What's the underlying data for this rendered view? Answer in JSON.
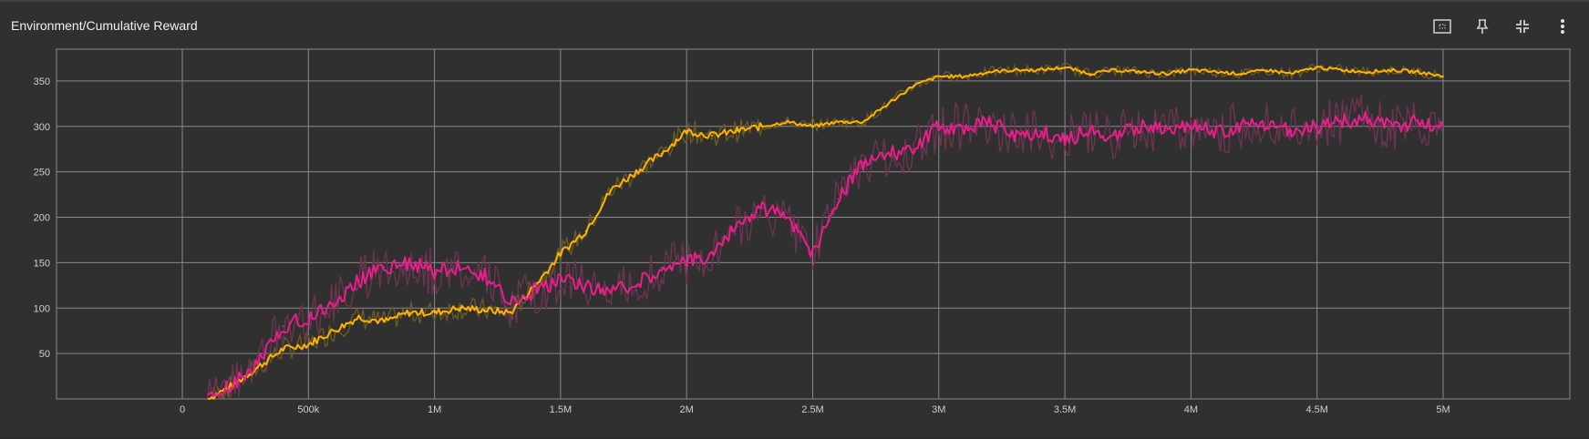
{
  "card": {
    "title": "Environment/Cumulative Reward"
  },
  "toolbar": {
    "icons": [
      "fit-domain-icon",
      "pin-icon",
      "fullscreen-exit-icon",
      "more-vert-icon"
    ]
  },
  "colors": {
    "orange": "#ffb300",
    "orange_raw": "#6b5a24",
    "pink": "#e91e8c",
    "pink_raw": "#6b3550",
    "grid": "#8a8a8a",
    "axis": "#cfcfcf"
  },
  "chart_data": {
    "type": "line",
    "title": "Environment/Cumulative Reward",
    "xlim": [
      -500000,
      5500000
    ],
    "ylim": [
      0,
      385
    ],
    "x_ticks": [
      0,
      500000,
      1000000,
      1500000,
      2000000,
      2500000,
      3000000,
      3500000,
      4000000,
      4500000,
      5000000
    ],
    "x_tick_labels": [
      "0",
      "500k",
      "1M",
      "1.5M",
      "2M",
      "2.5M",
      "3M",
      "3.5M",
      "4M",
      "4.5M",
      "5M"
    ],
    "y_ticks": [
      50,
      100,
      150,
      200,
      250,
      300,
      350
    ],
    "y_tick_labels": [
      "50",
      "100",
      "150",
      "200",
      "250",
      "300",
      "350"
    ],
    "grid": true,
    "series": [
      {
        "color_key": "orange",
        "x": [
          100000,
          200000,
          300000,
          400000,
          500000,
          600000,
          700000,
          800000,
          900000,
          1000000,
          1100000,
          1200000,
          1300000,
          1400000,
          1500000,
          1600000,
          1700000,
          1800000,
          1900000,
          2000000,
          2100000,
          2200000,
          2300000,
          2400000,
          2500000,
          2600000,
          2700000,
          2800000,
          2900000,
          3000000,
          3100000,
          3200000,
          3300000,
          3400000,
          3500000,
          3600000,
          3700000,
          3800000,
          3900000,
          4000000,
          4100000,
          4200000,
          4300000,
          4400000,
          4500000,
          4600000,
          4700000,
          4800000,
          4900000,
          5000000
        ],
        "y": [
          0,
          15,
          35,
          55,
          60,
          75,
          90,
          85,
          95,
          95,
          100,
          98,
          95,
          125,
          160,
          185,
          230,
          250,
          270,
          295,
          290,
          295,
          300,
          305,
          300,
          305,
          305,
          325,
          345,
          355,
          355,
          360,
          362,
          362,
          365,
          358,
          362,
          360,
          358,
          362,
          360,
          358,
          362,
          358,
          365,
          362,
          360,
          362,
          360,
          355
        ]
      },
      {
        "color_key": "pink",
        "x": [
          100000,
          200000,
          300000,
          400000,
          500000,
          600000,
          700000,
          800000,
          900000,
          1000000,
          1100000,
          1200000,
          1300000,
          1400000,
          1500000,
          1600000,
          1700000,
          1800000,
          1900000,
          2000000,
          2100000,
          2200000,
          2300000,
          2400000,
          2500000,
          2600000,
          2700000,
          2800000,
          2900000,
          3000000,
          3100000,
          3200000,
          3300000,
          3400000,
          3500000,
          3600000,
          3700000,
          3800000,
          3900000,
          4000000,
          4100000,
          4200000,
          4300000,
          4400000,
          4500000,
          4600000,
          4700000,
          4800000,
          4900000,
          5000000
        ],
        "y": [
          0,
          15,
          40,
          80,
          90,
          105,
          130,
          145,
          150,
          140,
          145,
          135,
          105,
          120,
          130,
          125,
          120,
          125,
          145,
          150,
          160,
          190,
          210,
          200,
          160,
          220,
          260,
          270,
          275,
          300,
          300,
          305,
          290,
          295,
          285,
          295,
          290,
          300,
          295,
          300,
          295,
          300,
          300,
          295,
          300,
          305,
          310,
          300,
          305,
          300
        ]
      }
    ]
  }
}
